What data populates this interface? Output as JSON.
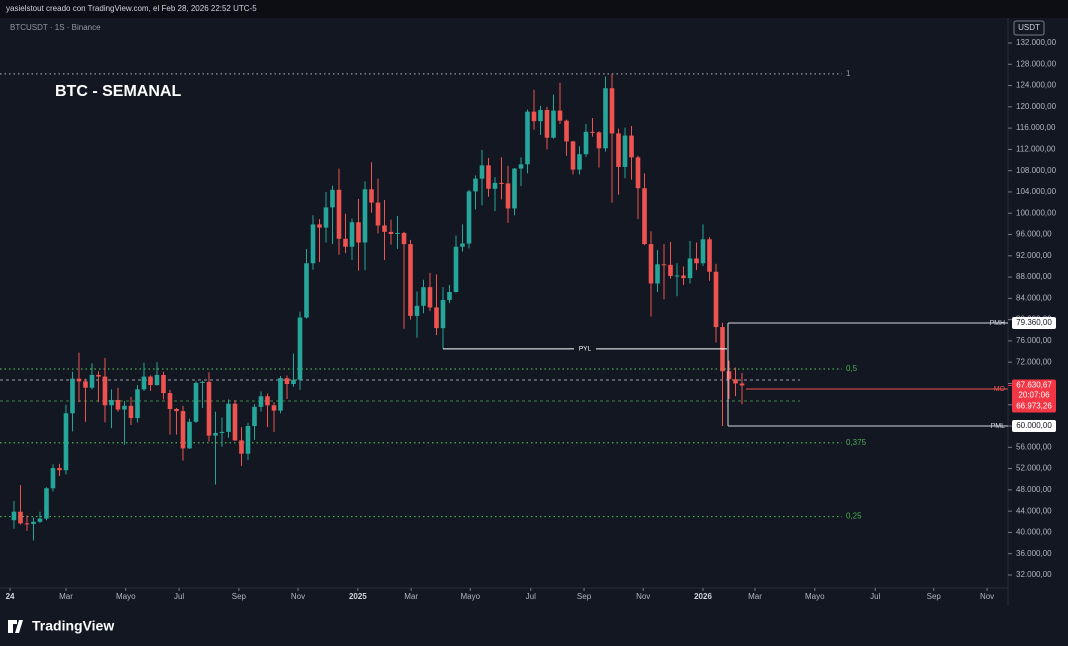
{
  "header": "yasielstout creado con TradingView.com, el Feb 28, 2026 22:52 UTC-5",
  "footer": {
    "brand": "TradingView"
  },
  "chart_data": {
    "type": "candlestick",
    "symbol": "BTCUSDT · 1S · Binance",
    "title": "BTC - SEMANAL",
    "currency": "USDT",
    "up_color": "#26a69a",
    "down_color": "#ef5350",
    "grid": false,
    "open": [
      42300,
      43900,
      41700,
      41600,
      42000,
      42600,
      48300,
      52100,
      51700,
      62400,
      68900,
      68400,
      67200,
      69600,
      69300,
      63900,
      64900,
      63100,
      63800,
      61500,
      66900,
      69300,
      67700,
      69600,
      66200,
      63200,
      62800,
      55800,
      60800,
      68100,
      68300,
      58200,
      58700,
      58900,
      64200,
      57300,
      54800,
      60000,
      63600,
      65600,
      63900,
      62900,
      69000,
      67900,
      68700,
      80400,
      90600,
      97900,
      97300,
      101100,
      104400,
      95200,
      93700,
      98300,
      94500,
      104500,
      102000,
      97700,
      96500,
      96100,
      96300,
      94200,
      80700,
      82600,
      86100,
      82300,
      78400,
      83700,
      85200,
      93700,
      94300,
      104100,
      106500,
      109000,
      104600,
      105700,
      105600,
      100900,
      108400,
      109200,
      119100,
      117300,
      119400,
      114200,
      119300,
      117400,
      113500,
      108200,
      111100,
      115300,
      115200,
      112200,
      123500,
      115000,
      108700,
      114600,
      110500,
      104700,
      94200,
      86800,
      90400,
      90300,
      88200,
      88300,
      87800,
      91500,
      90600,
      95100,
      89000,
      78600,
      70300,
      68800,
      68000
    ],
    "high": [
      45900,
      48900,
      43200,
      42800,
      43900,
      48500,
      52800,
      52900,
      64000,
      70200,
      73800,
      68900,
      71800,
      70300,
      72800,
      66900,
      67200,
      64700,
      65500,
      67700,
      71900,
      69500,
      72000,
      70200,
      66800,
      63400,
      63800,
      61400,
      68400,
      68500,
      70100,
      62700,
      61600,
      65000,
      64900,
      59800,
      60600,
      64100,
      66500,
      66100,
      64500,
      69400,
      69500,
      73600,
      81500,
      93300,
      99600,
      98900,
      104000,
      105200,
      108400,
      99900,
      99000,
      102700,
      106000,
      109600,
      106500,
      102500,
      98800,
      99500,
      96500,
      95000,
      85300,
      87500,
      88800,
      88500,
      86100,
      86500,
      95800,
      97900,
      104400,
      107100,
      111900,
      110400,
      106800,
      110500,
      108900,
      108500,
      110500,
      119500,
      123200,
      120200,
      120000,
      122300,
      124500,
      117600,
      113600,
      112600,
      116800,
      117900,
      115400,
      125700,
      126200,
      115900,
      116100,
      116400,
      110800,
      107500,
      96600,
      93100,
      94200,
      94600,
      90600,
      90000,
      94800,
      94500,
      97900,
      95500,
      90500,
      79400,
      72300,
      71000,
      70000
    ],
    "low": [
      40700,
      41500,
      40300,
      38500,
      41800,
      42300,
      47700,
      50600,
      50900,
      59000,
      64500,
      60800,
      66900,
      64500,
      60700,
      59600,
      62700,
      56500,
      60200,
      60700,
      66600,
      66600,
      67600,
      65000,
      58400,
      58400,
      53500,
      55700,
      60600,
      63400,
      57100,
      49000,
      56100,
      57800,
      57200,
      52500,
      53600,
      57400,
      62700,
      59800,
      58900,
      62400,
      65100,
      67400,
      66800,
      80200,
      89400,
      90800,
      94500,
      94200,
      92200,
      92500,
      91200,
      89200,
      89300,
      100100,
      96200,
      91200,
      94100,
      93300,
      78300,
      80000,
      76600,
      81200,
      81600,
      77100,
      74500,
      83100,
      85100,
      92800,
      93400,
      100700,
      101500,
      103100,
      100400,
      102600,
      98200,
      99600,
      105100,
      107500,
      115700,
      114700,
      112000,
      114000,
      116800,
      110800,
      107300,
      107300,
      110600,
      114400,
      108600,
      111600,
      102000,
      103500,
      106600,
      106300,
      98900,
      94000,
      80600,
      85200,
      83800,
      87700,
      84400,
      86500,
      86800,
      89300,
      90100,
      87300,
      75700,
      60000,
      65100,
      65600,
      64100
    ],
    "close": [
      43900,
      41700,
      41600,
      42000,
      42600,
      48300,
      52100,
      51700,
      62400,
      68900,
      68400,
      67200,
      69600,
      69300,
      63900,
      64900,
      63100,
      63800,
      61500,
      66900,
      69300,
      67700,
      69600,
      66200,
      63200,
      62800,
      55800,
      60800,
      68100,
      68300,
      58200,
      58700,
      58900,
      64200,
      57300,
      54800,
      60000,
      63600,
      65600,
      63900,
      62900,
      69000,
      67900,
      68700,
      80400,
      90600,
      97900,
      97300,
      101100,
      104400,
      95200,
      93700,
      98300,
      94500,
      104500,
      102000,
      97700,
      96500,
      96100,
      96300,
      94200,
      80700,
      82600,
      86100,
      82300,
      78400,
      83700,
      85200,
      93700,
      94300,
      104100,
      106500,
      109000,
      104600,
      105700,
      105600,
      100900,
      108400,
      109200,
      119100,
      117300,
      119400,
      114200,
      119300,
      117400,
      113500,
      108200,
      111100,
      115300,
      115200,
      112200,
      123500,
      115000,
      108700,
      114600,
      110500,
      104700,
      94200,
      86800,
      90400,
      90300,
      88200,
      88300,
      87800,
      91500,
      90600,
      95100,
      89000,
      78600,
      70300,
      68800,
      68000,
      67630.67
    ],
    "xlim": [
      -2.15,
      152.92
    ],
    "xticks": [
      {
        "value": -0.6,
        "label": "24"
      },
      {
        "value": 8,
        "label": "Mar"
      },
      {
        "value": 17.2,
        "label": "Mayo"
      },
      {
        "value": 25.4,
        "label": "Jul"
      },
      {
        "value": 34.6,
        "label": "Sep"
      },
      {
        "value": 43.7,
        "label": "Nov"
      },
      {
        "value": 52.9,
        "label": "2025"
      },
      {
        "value": 61.1,
        "label": "Mar"
      },
      {
        "value": 70.2,
        "label": "Mayo"
      },
      {
        "value": 79.5,
        "label": "Jul"
      },
      {
        "value": 87.7,
        "label": "Sep"
      },
      {
        "value": 96.8,
        "label": "Nov"
      },
      {
        "value": 106,
        "label": "2026"
      },
      {
        "value": 114,
        "label": "Mar"
      },
      {
        "value": 123.2,
        "label": "Mayo"
      },
      {
        "value": 132.5,
        "label": "Jul"
      },
      {
        "value": 141.5,
        "label": "Sep"
      },
      {
        "value": 149.7,
        "label": "Nov"
      }
    ],
    "ylim": [
      29556,
      136699
    ],
    "yticks": [
      {
        "value": 132000,
        "label": "132.000,00"
      },
      {
        "value": 128000,
        "label": "128.000,00"
      },
      {
        "value": 124000,
        "label": "124.000,00"
      },
      {
        "value": 120000,
        "label": "120.000,00"
      },
      {
        "value": 116000,
        "label": "116.000,00"
      },
      {
        "value": 112000,
        "label": "112.000,00"
      },
      {
        "value": 108000,
        "label": "108.000,00"
      },
      {
        "value": 104000,
        "label": "104.000,00"
      },
      {
        "value": 100000,
        "label": "100.000,00"
      },
      {
        "value": 96000,
        "label": "96.000,00"
      },
      {
        "value": 92000,
        "label": "92.000,00"
      },
      {
        "value": 88000,
        "label": "88.000,00"
      },
      {
        "value": 84000,
        "label": "84.000,00"
      },
      {
        "value": 80000,
        "label": "80.000,00"
      },
      {
        "value": 76000,
        "label": "76.000,00"
      },
      {
        "value": 72000,
        "label": "72.000,00"
      },
      {
        "value": 68000,
        "label": "68.000,00"
      },
      {
        "value": 64000,
        "label": "64.000,00"
      },
      {
        "value": 60000,
        "label": "60.000,00"
      },
      {
        "value": 56000,
        "label": "56.000,00"
      },
      {
        "value": 52000,
        "label": "52.000,00"
      },
      {
        "value": 48000,
        "label": "48.000,00"
      },
      {
        "value": 44000,
        "label": "44.000,00"
      },
      {
        "value": 40000,
        "label": "40.000,00"
      },
      {
        "value": 36000,
        "label": "36.000,00"
      },
      {
        "value": 32000,
        "label": "32.000,00"
      }
    ],
    "fib_levels": [
      {
        "label": "1",
        "value": 126199,
        "color": "#9598a1"
      },
      {
        "label": "0,5",
        "value": 70722,
        "color": "#4caf50"
      },
      {
        "label": "0,375",
        "value": 56853,
        "color": "#4caf50"
      },
      {
        "label": "0,25",
        "value": 42984,
        "color": "#4caf50"
      }
    ],
    "dashed_levels": [
      {
        "value": 68654,
        "color": "#c9ccd4"
      },
      {
        "value": 64707,
        "color": "#4caf50"
      }
    ],
    "pyl": {
      "name": "PYL",
      "value": 74500
    },
    "levels": [
      {
        "name": "PMH",
        "value": 79360,
        "value_label": "79.360,00",
        "color": "#d1d4dc"
      },
      {
        "name": "PML",
        "value": 60000,
        "value_label": "60.000,00",
        "color": "#d1d4dc"
      },
      {
        "name": "MO",
        "value": 66973.26,
        "value_label": "66.973,26",
        "color": "#ef5350"
      }
    ],
    "last_price": {
      "value": 67630.67,
      "label": "67.630,67",
      "countdown": "20:07:06"
    }
  }
}
